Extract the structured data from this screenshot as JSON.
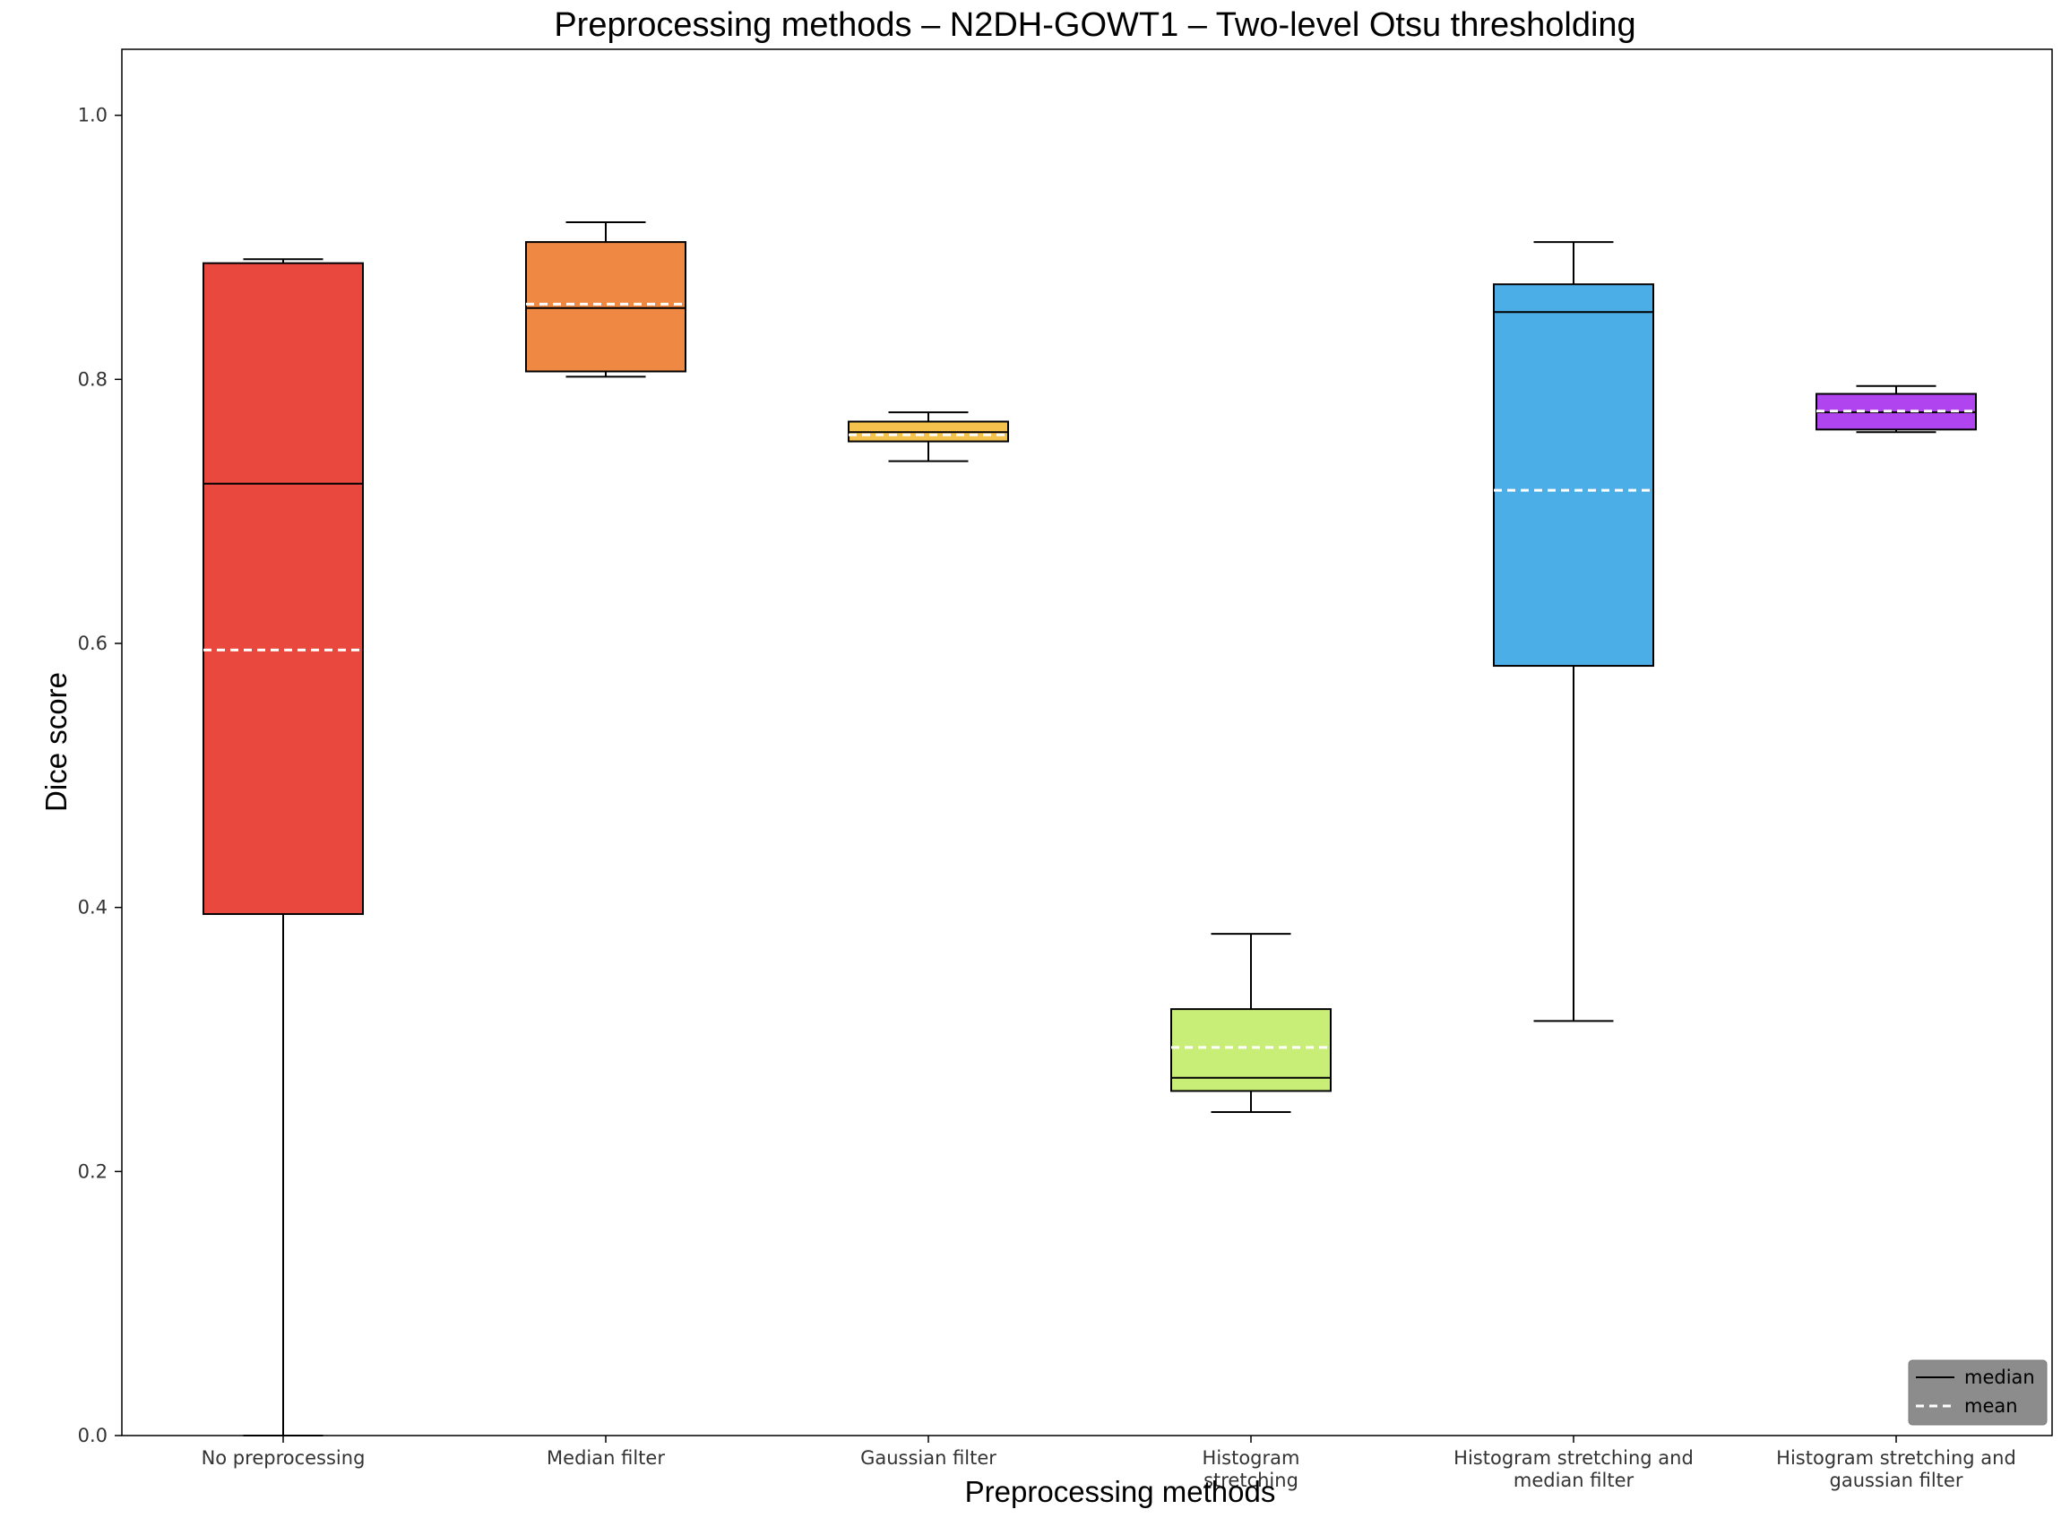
{
  "chart_data": {
    "type": "box",
    "title": "Preprocessing methods – N2DH-GOWT1 – Two-level Otsu thresholding",
    "xlabel": "Preprocessing methods",
    "ylabel": "Dice score",
    "ylim": [
      0.0,
      1.05
    ],
    "yticks": [
      "0.0",
      "0.2",
      "0.4",
      "0.6",
      "0.8",
      "1.0"
    ],
    "grid": false,
    "legend": {
      "position": "bottom-right",
      "entries": [
        {
          "label": "median",
          "style": "solid",
          "color": "#000000"
        },
        {
          "label": "mean",
          "style": "dashed",
          "color": "#ffffff"
        }
      ]
    },
    "categories": [
      [
        "No preprocessing"
      ],
      [
        "Median filter"
      ],
      [
        "Gaussian filter"
      ],
      [
        "Histogram",
        "stretching"
      ],
      [
        "Histogram stretching and",
        "median filter"
      ],
      [
        "Histogram stretching and",
        "gaussian filter"
      ]
    ],
    "boxes": [
      {
        "whisker_low": 0.0,
        "q1": 0.395,
        "median": 0.721,
        "mean": 0.595,
        "q3": 0.888,
        "whisker_high": 0.891,
        "color": "#e8483e"
      },
      {
        "whisker_low": 0.802,
        "q1": 0.806,
        "median": 0.854,
        "mean": 0.857,
        "q3": 0.904,
        "whisker_high": 0.919,
        "color": "#ef8842"
      },
      {
        "whisker_low": 0.738,
        "q1": 0.753,
        "median": 0.76,
        "mean": 0.758,
        "q3": 0.768,
        "whisker_high": 0.775,
        "color": "#f5c24e"
      },
      {
        "whisker_low": 0.245,
        "q1": 0.261,
        "median": 0.271,
        "mean": 0.294,
        "q3": 0.323,
        "whisker_high": 0.38,
        "color": "#c8ee78"
      },
      {
        "whisker_low": 0.314,
        "q1": 0.583,
        "median": 0.851,
        "mean": 0.716,
        "q3": 0.872,
        "whisker_high": 0.904,
        "color": "#4caee6"
      },
      {
        "whisker_low": 0.76,
        "q1": 0.762,
        "median": 0.775,
        "mean": 0.776,
        "q3": 0.789,
        "whisker_high": 0.795,
        "color": "#b044ee"
      }
    ]
  }
}
